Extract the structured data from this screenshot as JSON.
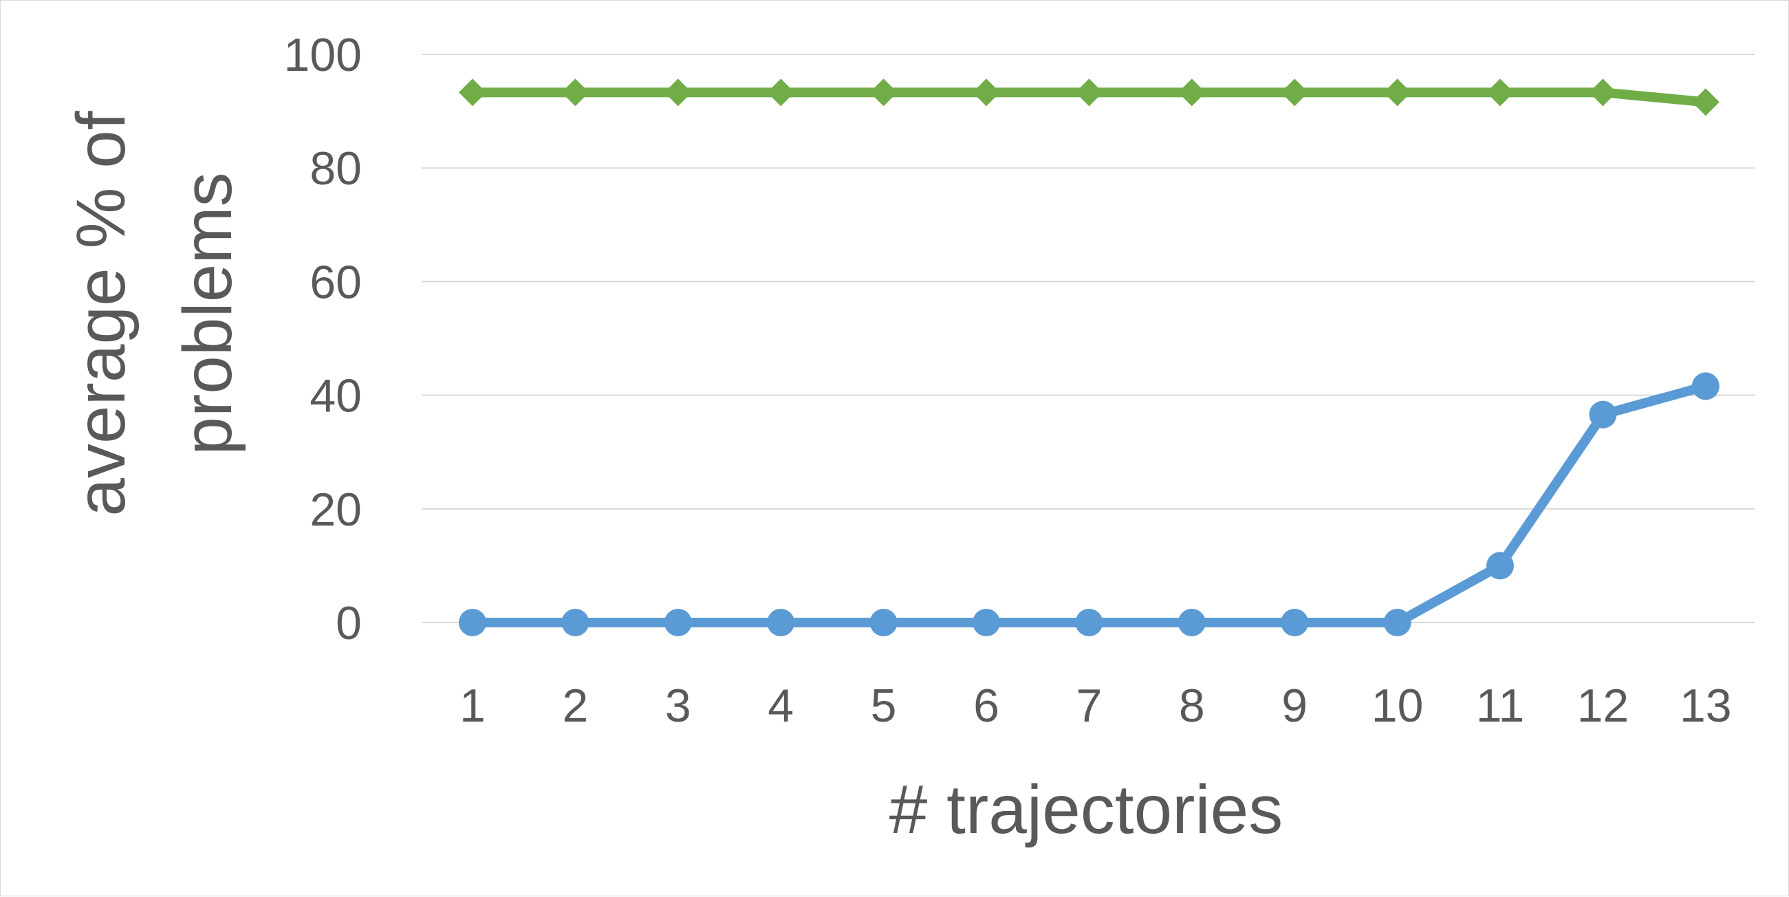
{
  "chart_data": {
    "type": "line",
    "xlabel": "# trajectories",
    "ylabel_lines": [
      "average % of",
      "problems"
    ],
    "categories": [
      "1",
      "2",
      "3",
      "4",
      "5",
      "6",
      "7",
      "8",
      "9",
      "10",
      "11",
      "12",
      "13"
    ],
    "ylim": [
      0,
      100
    ],
    "yticks": [
      0,
      20,
      40,
      60,
      80,
      100
    ],
    "grid": true,
    "series": [
      {
        "color": "#70AD47",
        "marker": "diamond",
        "values": [
          93.3,
          93.3,
          93.3,
          93.3,
          93.3,
          93.3,
          93.3,
          93.3,
          93.3,
          93.3,
          93.3,
          93.3,
          91.6
        ]
      },
      {
        "color": "#5B9BD5",
        "marker": "circle",
        "values": [
          0,
          0,
          0,
          0,
          0,
          0,
          0,
          0,
          0,
          0,
          10,
          36.6,
          41.6
        ]
      }
    ]
  }
}
